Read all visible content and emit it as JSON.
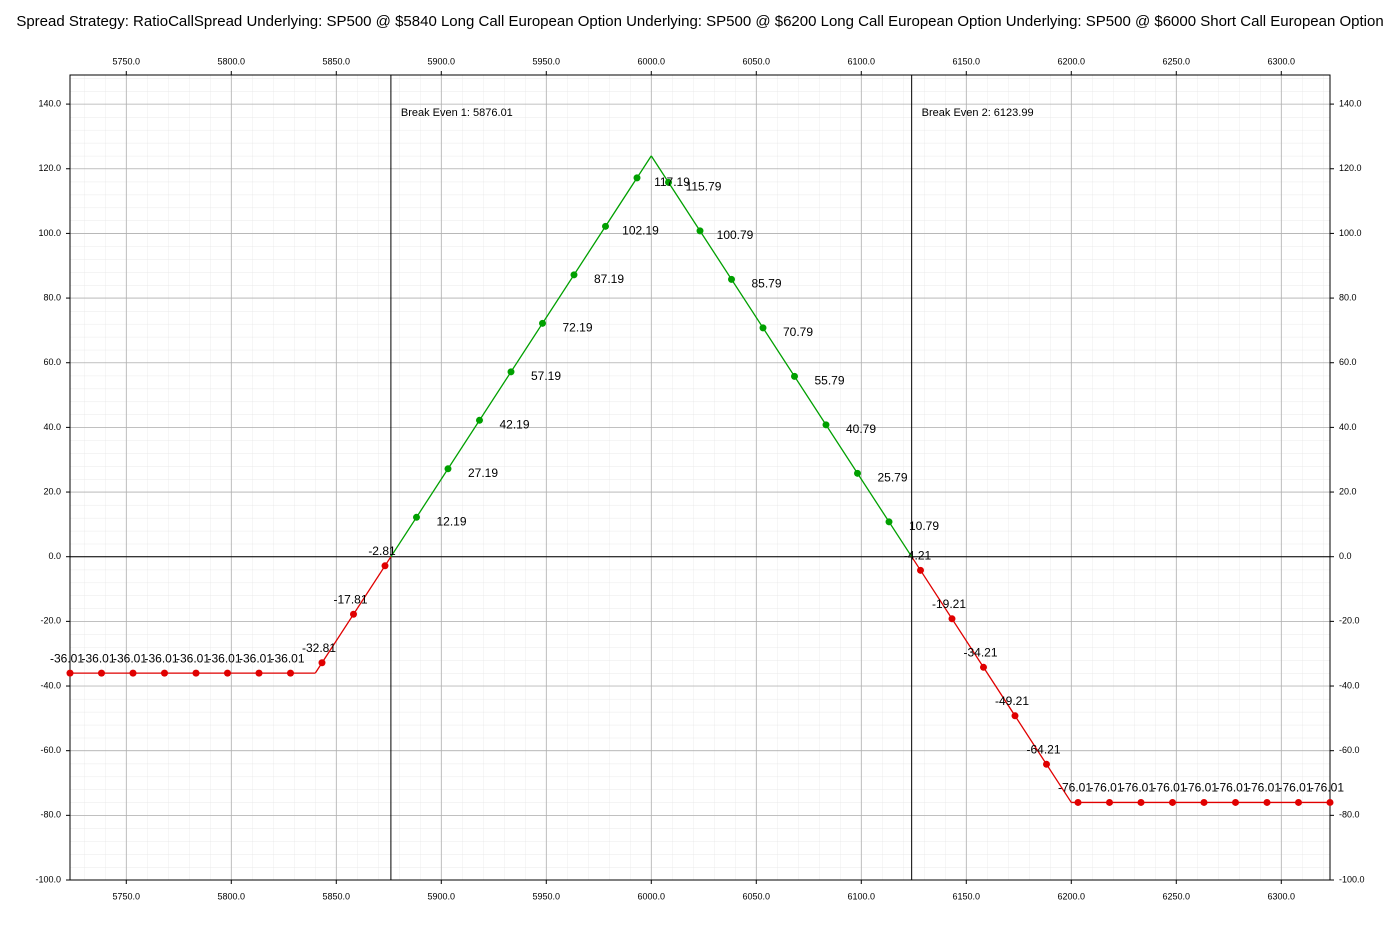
{
  "chart_data": {
    "type": "line",
    "title": "Spread Strategy: RatioCallSpread  Underlying: SP500 @ $5840 Long Call European Option  Underlying: SP500 @ $6200 Long Call European Option  Underlying: SP500 @ $6000 Short Call European Option",
    "x": [
      5723.2,
      5738.2,
      5753.2,
      5768.2,
      5783.2,
      5798.2,
      5813.2,
      5828.2,
      5843.2,
      5858.2,
      5873.2,
      5888.2,
      5903.2,
      5918.2,
      5933.2,
      5948.2,
      5963.2,
      5978.2,
      5993.2,
      6008.2,
      6023.2,
      6038.2,
      6053.2,
      6068.2,
      6083.2,
      6098.2,
      6113.2,
      6128.2,
      6143.2,
      6158.2,
      6173.2,
      6188.2,
      6203.2,
      6218.2,
      6233.2,
      6248.2,
      6263.2,
      6278.2,
      6293.2,
      6308.2,
      6323.2
    ],
    "values": [
      -36.01,
      -36.01,
      -36.01,
      -36.01,
      -36.01,
      -36.01,
      -36.01,
      -36.01,
      -32.81,
      -17.81,
      -2.81,
      12.19,
      27.19,
      42.19,
      57.19,
      72.19,
      87.19,
      102.19,
      117.19,
      115.79,
      100.79,
      85.79,
      70.79,
      55.79,
      40.79,
      25.79,
      10.79,
      -4.21,
      -19.21,
      -34.21,
      -49.21,
      -64.21,
      -76.01,
      -76.01,
      -76.01,
      -76.01,
      -76.01,
      -76.01,
      -76.01,
      -76.01,
      -76.01
    ],
    "payoff_curve": {
      "x": [
        5723.2,
        5840,
        5876.01,
        6000,
        6123.99,
        6200,
        6323.2
      ],
      "values": [
        -36.01,
        -36.01,
        0,
        123.99,
        0,
        -76.01,
        -76.01
      ]
    },
    "colors": {
      "positive": "#00a000",
      "negative": "#e00000"
    },
    "annotations": [
      {
        "x": 5876.01,
        "label": "Break Even 1: 5876.01"
      },
      {
        "x": 6123.99,
        "label": "Break Even 2: 6123.99"
      }
    ],
    "xlim": [
      5723.2,
      6323.2
    ],
    "ylim": [
      -100,
      149
    ],
    "xticks": [
      {
        "value": 5750,
        "label": "5750.0"
      },
      {
        "value": 5800,
        "label": "5800.0"
      },
      {
        "value": 5850,
        "label": "5850.0"
      },
      {
        "value": 5900,
        "label": "5900.0"
      },
      {
        "value": 5950,
        "label": "5950.0"
      },
      {
        "value": 6000,
        "label": "6000.0"
      },
      {
        "value": 6050,
        "label": "6050.0"
      },
      {
        "value": 6100,
        "label": "6100.0"
      },
      {
        "value": 6150,
        "label": "6150.0"
      },
      {
        "value": 6200,
        "label": "6200.0"
      },
      {
        "value": 6250,
        "label": "6250.0"
      },
      {
        "value": 6300,
        "label": "6300.0"
      }
    ],
    "yticks": [
      {
        "value": -100,
        "label": "-100.0"
      },
      {
        "value": -80,
        "label": "-80.0"
      },
      {
        "value": -60,
        "label": "-60.0"
      },
      {
        "value": -40,
        "label": "-40.0"
      },
      {
        "value": -20,
        "label": "-20.0"
      },
      {
        "value": 0,
        "label": "0.0"
      },
      {
        "value": 20,
        "label": "20.0"
      },
      {
        "value": 40,
        "label": "40.0"
      },
      {
        "value": 60,
        "label": "60.0"
      },
      {
        "value": 80,
        "label": "80.0"
      },
      {
        "value": 100,
        "label": "100.0"
      },
      {
        "value": 120,
        "label": "120.0"
      },
      {
        "value": 140,
        "label": "140.0"
      }
    ],
    "grid": true
  }
}
